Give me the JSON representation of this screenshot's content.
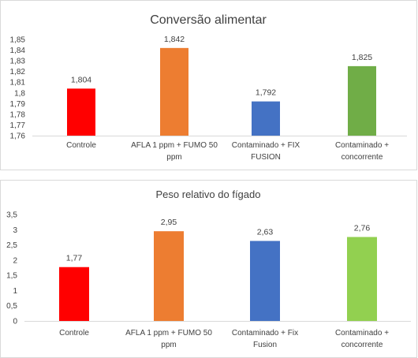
{
  "chart_data": [
    {
      "type": "bar",
      "title": "Conversão alimentar",
      "categories": [
        [
          "Controle"
        ],
        [
          "AFLA 1 ppm + FUMO 50",
          "ppm"
        ],
        [
          "Contaminado + FIX",
          "FUSION"
        ],
        [
          "Contaminado +",
          "concorrente"
        ]
      ],
      "values": [
        1.804,
        1.842,
        1.792,
        1.825
      ],
      "value_labels": [
        "1,804",
        "1,842",
        "1,792",
        "1,825"
      ],
      "colors": [
        "#ff0000",
        "#ed7d31",
        "#4472c4",
        "#70ad47"
      ],
      "ylim": [
        1.76,
        1.85
      ],
      "y_ticks": [
        "1,85",
        "1,84",
        "1,83",
        "1,82",
        "1,81",
        "1,8",
        "1,79",
        "1,78",
        "1,77",
        "1,76"
      ],
      "y_tick_values": [
        1.85,
        1.84,
        1.83,
        1.82,
        1.81,
        1.8,
        1.79,
        1.78,
        1.77,
        1.76
      ],
      "xlabel": "",
      "ylabel": "",
      "grid": false
    },
    {
      "type": "bar",
      "title": "Peso relativo do fígado",
      "categories": [
        [
          "Controle"
        ],
        [
          "AFLA 1 ppm + FUMO 50",
          "ppm"
        ],
        [
          "Contaminado + Fix",
          "Fusion"
        ],
        [
          "Contaminado +",
          "concorrente"
        ]
      ],
      "values": [
        1.77,
        2.95,
        2.63,
        2.76
      ],
      "value_labels": [
        "1,77",
        "2,95",
        "2,63",
        "2,76"
      ],
      "colors": [
        "#ff0000",
        "#ed7d31",
        "#4472c4",
        "#92d050"
      ],
      "ylim": [
        0,
        3.5
      ],
      "y_ticks": [
        "3,5",
        "3",
        "2,5",
        "2",
        "1,5",
        "1",
        "0,5",
        "0"
      ],
      "y_tick_values": [
        3.5,
        3,
        2.5,
        2,
        1.5,
        1,
        0.5,
        0
      ],
      "xlabel": "",
      "ylabel": "",
      "grid": false
    }
  ]
}
